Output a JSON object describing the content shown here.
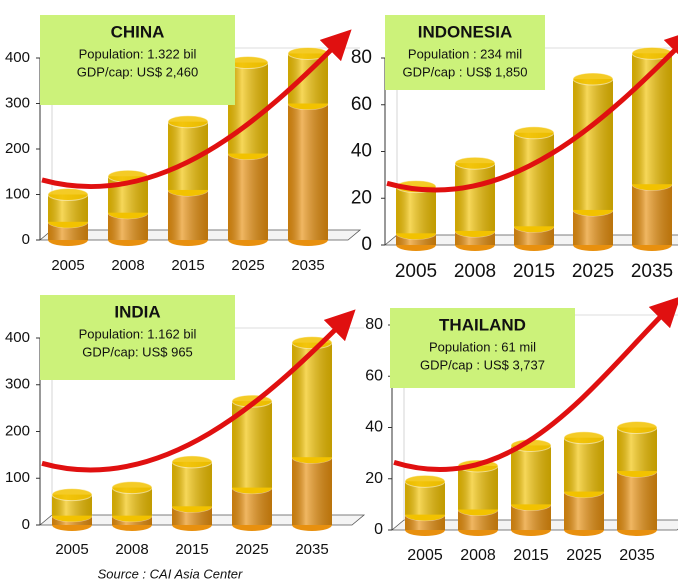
{
  "chart_data": [
    {
      "type": "bar",
      "stacked": true,
      "title": "CHINA",
      "annotations": [
        "Population: 1.322 bil",
        "GDP/cap: US$ 2,460"
      ],
      "categories": [
        "2005",
        "2008",
        "2015",
        "2025",
        "2035"
      ],
      "series": [
        {
          "color": "#e8900e",
          "values": [
            40,
            60,
            110,
            190,
            300
          ]
        },
        {
          "color": "#f2c200",
          "values": [
            60,
            80,
            150,
            200,
            110
          ]
        }
      ],
      "ylim": [
        0,
        400
      ],
      "yticks": [
        0,
        100,
        200,
        300,
        400
      ]
    },
    {
      "type": "bar",
      "stacked": true,
      "title": "INDONESIA",
      "annotations": [
        "Population :  234 mil",
        "GDP/cap : US$ 1,850"
      ],
      "categories": [
        "2005",
        "2008",
        "2015",
        "2025",
        "2035"
      ],
      "series": [
        {
          "color": "#e8900e",
          "values": [
            5,
            6,
            8,
            15,
            26
          ]
        },
        {
          "color": "#f2c200",
          "values": [
            20,
            29,
            40,
            56,
            56
          ]
        }
      ],
      "ylim": [
        0,
        80
      ],
      "yticks": [
        0,
        20,
        40,
        60,
        80
      ]
    },
    {
      "type": "bar",
      "stacked": true,
      "title": "INDIA",
      "annotations": [
        "Population: 1.162 bil",
        "GDP/cap: US$ 965"
      ],
      "categories": [
        "2005",
        "2008",
        "2015",
        "2025",
        "2035"
      ],
      "series": [
        {
          "color": "#e8900e",
          "values": [
            20,
            20,
            40,
            80,
            145
          ]
        },
        {
          "color": "#f2c200",
          "values": [
            45,
            60,
            95,
            185,
            245
          ]
        }
      ],
      "ylim": [
        0,
        400
      ],
      "yticks": [
        0,
        100,
        200,
        300,
        400
      ]
    },
    {
      "type": "bar",
      "stacked": true,
      "title": "THAILAND",
      "annotations": [
        "Population :  61 mil",
        "GDP/cap : US$ 3,737"
      ],
      "categories": [
        "2005",
        "2008",
        "2015",
        "2025",
        "2035"
      ],
      "series": [
        {
          "color": "#e8900e",
          "values": [
            6,
            8,
            10,
            15,
            23
          ]
        },
        {
          "color": "#f2c200",
          "values": [
            13,
            17,
            23,
            21,
            17
          ]
        }
      ],
      "ylim": [
        0,
        80
      ],
      "yticks": [
        0,
        20,
        40,
        60,
        80
      ]
    }
  ],
  "source": "Source : CAI Asia Center"
}
